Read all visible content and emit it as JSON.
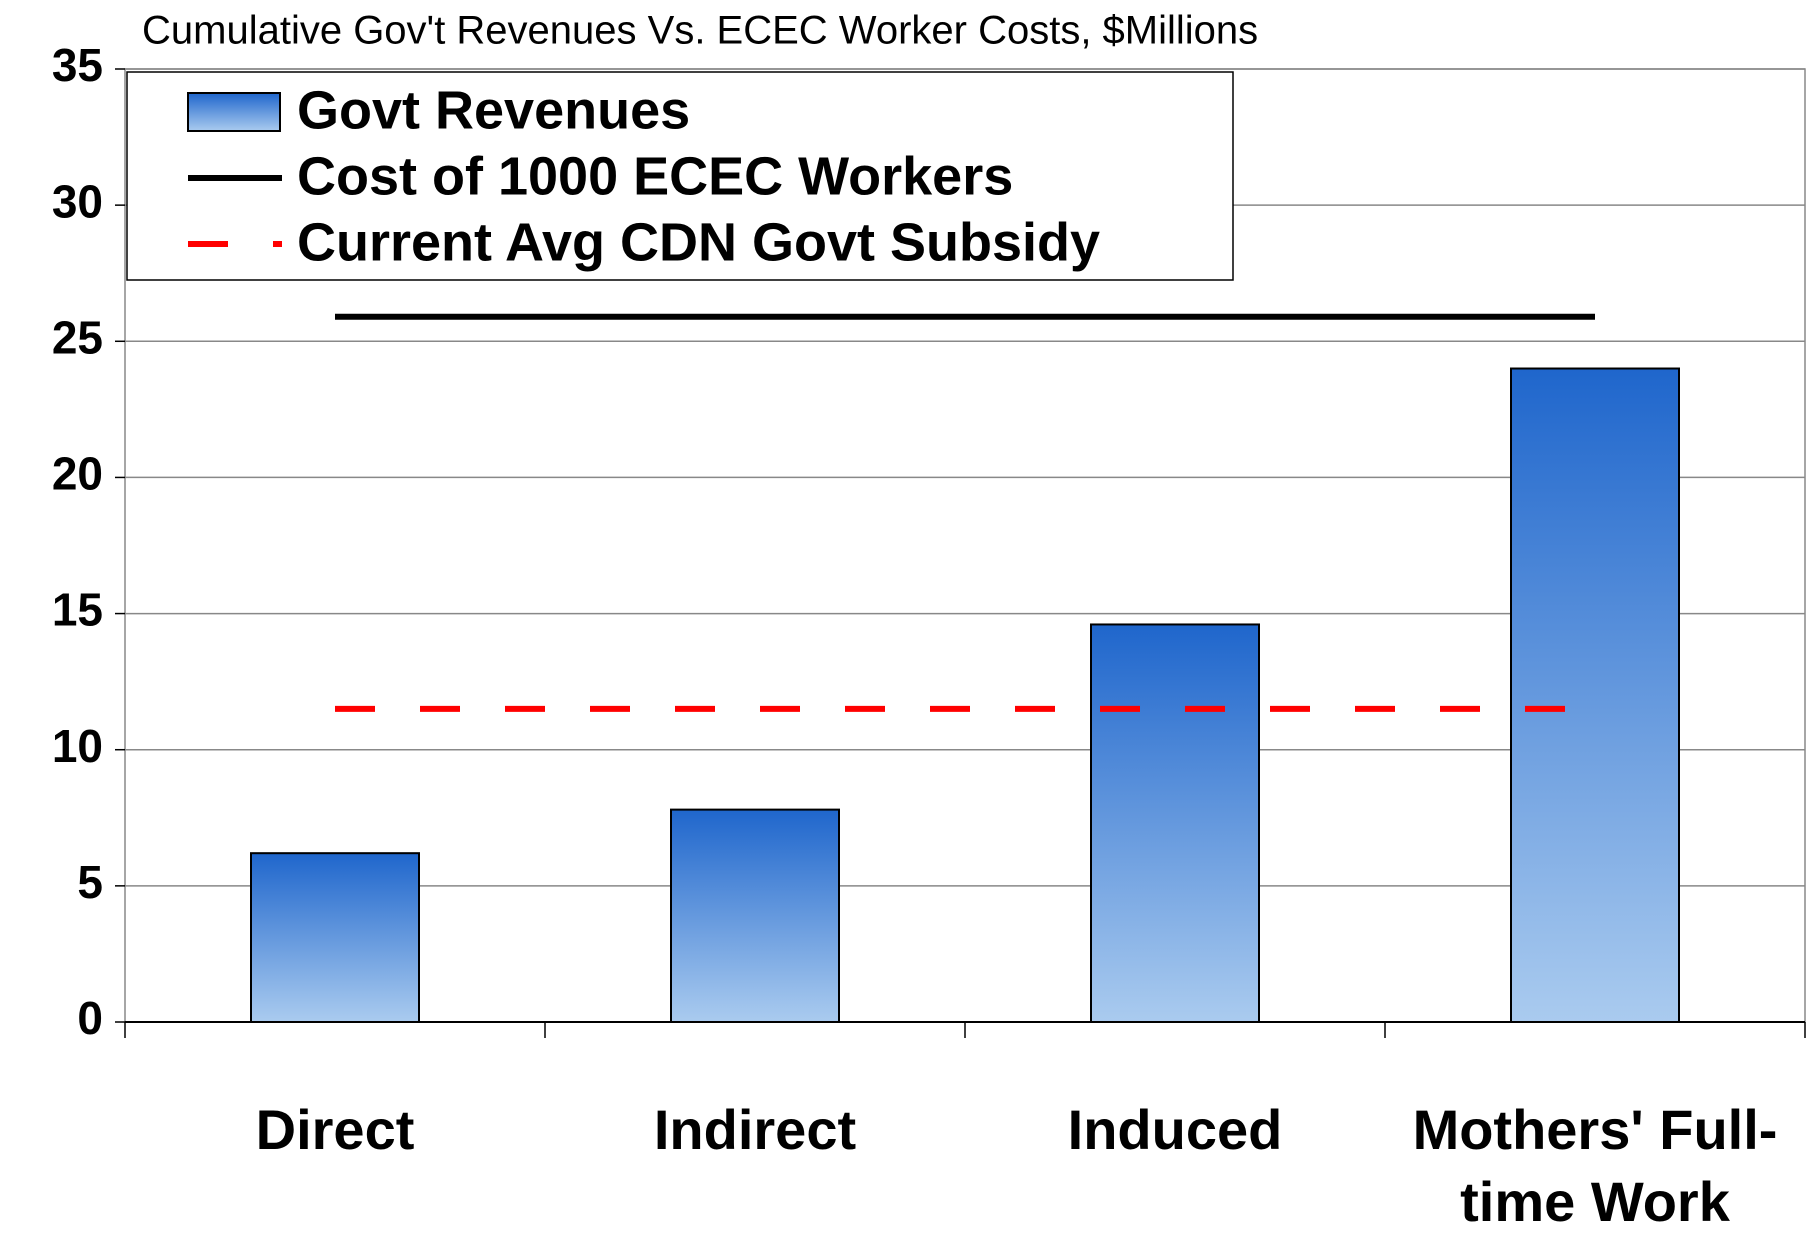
{
  "chart_data": {
    "type": "bar",
    "title": "Cumulative Gov't Revenues Vs. ECEC Worker Costs, $Millions",
    "categories": [
      "Direct",
      "Indirect",
      "Induced",
      "Mothers' Full-time Work"
    ],
    "series": [
      {
        "name": "Govt Revenues",
        "type": "bar",
        "color": "#1f66cc",
        "values": [
          6.2,
          7.8,
          14.6,
          24.0
        ]
      },
      {
        "name": "Cost of 1000 ECEC Workers",
        "type": "line",
        "color": "#000000",
        "dashed": false,
        "values": [
          25.9,
          25.9,
          25.9,
          25.9
        ]
      },
      {
        "name": "Current Avg CDN Govt Subsidy",
        "type": "line",
        "color": "#ff0000",
        "dashed": true,
        "values": [
          11.5,
          11.5,
          11.5,
          11.5
        ]
      }
    ],
    "ylim": [
      0,
      35
    ],
    "yticks": [
      0,
      5,
      10,
      15,
      20,
      25,
      30,
      35
    ],
    "grid": true,
    "legend": "upper left"
  }
}
